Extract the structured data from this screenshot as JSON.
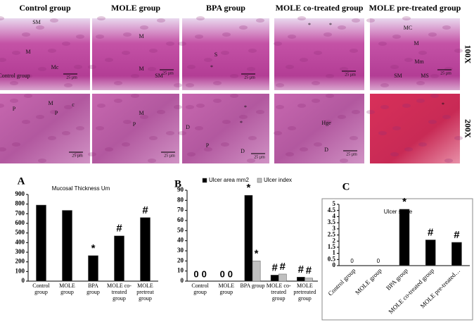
{
  "histology": {
    "columns": [
      "Control group",
      "MOLE group",
      "BPA group",
      "MOLE co-treated group",
      "MOLE pre-treated group"
    ],
    "magnifications": [
      "100X",
      "200X"
    ],
    "images": [
      [
        [
          "SM",
          "M",
          "Mc",
          "25 µm",
          "Control group"
        ],
        [
          "M",
          "M",
          "SM",
          "25 µm"
        ],
        [
          "S",
          "*",
          "25 µm"
        ],
        [
          "*",
          "*",
          "25 µm"
        ],
        [
          "MC",
          "M",
          "Mm",
          "SM",
          "MS",
          "25 µm"
        ]
      ],
      [
        [
          "P",
          "M",
          "P",
          "c",
          "25 µm"
        ],
        [
          "M",
          "P",
          "25 µm"
        ],
        [
          "*",
          "*",
          "D",
          "P",
          "D",
          "25 µm"
        ],
        [
          "Hge",
          "D",
          "25 µm"
        ],
        [
          "*"
        ]
      ]
    ]
  },
  "chart_data": [
    {
      "type": "bar",
      "panel": "A",
      "title": "Mucosal Thickness Um",
      "categories": [
        "Control group",
        "MOLE group",
        "BPA group",
        "MOLE co-treated group",
        "MOLE pretreat group"
      ],
      "series": [
        {
          "name": "Mucosal Thickness Um",
          "color": "#000000",
          "values": [
            790,
            735,
            265,
            470,
            660
          ],
          "significance": [
            null,
            null,
            "*",
            "#",
            "#"
          ]
        }
      ],
      "ylim": [
        0,
        900
      ],
      "yticks": [
        0,
        100,
        200,
        300,
        400,
        500,
        600,
        700,
        800,
        900
      ],
      "legend": false
    },
    {
      "type": "bar",
      "panel": "B",
      "categories": [
        "Control group",
        "MOLE group",
        "BPA group",
        "MOLE co-treated group",
        "MOLE pretreated group"
      ],
      "series": [
        {
          "name": "Ulcer area mm2",
          "color": "#000000",
          "values": [
            0,
            0,
            85,
            6,
            4
          ],
          "value_labels": [
            "0",
            "0",
            null,
            null,
            null
          ],
          "significance": [
            null,
            null,
            "*",
            "#",
            "#"
          ]
        },
        {
          "name": "Ulcer index",
          "color": "#c0c0c0",
          "values": [
            0,
            0,
            20,
            7,
            3
          ],
          "value_labels": [
            "0",
            "0",
            null,
            null,
            null
          ],
          "significance": [
            null,
            null,
            "*",
            "#",
            "#"
          ]
        }
      ],
      "ylim": [
        0,
        90
      ],
      "yticks": [
        0,
        10,
        20,
        30,
        40,
        50,
        60,
        70,
        80,
        90
      ],
      "legend": "top"
    },
    {
      "type": "bar",
      "panel": "C",
      "title": "Ulcer score",
      "categories": [
        "Control group",
        "MOLE group",
        "BPA group",
        "MOLE co-treated group",
        "MOLE pre-treated…"
      ],
      "series": [
        {
          "name": "Ulcer score",
          "color": "#000000",
          "values": [
            0,
            0,
            4.6,
            2.1,
            1.9
          ],
          "value_labels": [
            "0",
            "0",
            null,
            null,
            null
          ],
          "significance": [
            null,
            null,
            "*",
            "#",
            "#"
          ]
        }
      ],
      "ylim": [
        0,
        5
      ],
      "yticks": [
        0,
        0.5,
        1,
        1.5,
        2,
        2.5,
        3,
        3.5,
        4,
        4.5,
        5
      ],
      "legend": false,
      "rotate_labels": true,
      "frame": true
    }
  ]
}
